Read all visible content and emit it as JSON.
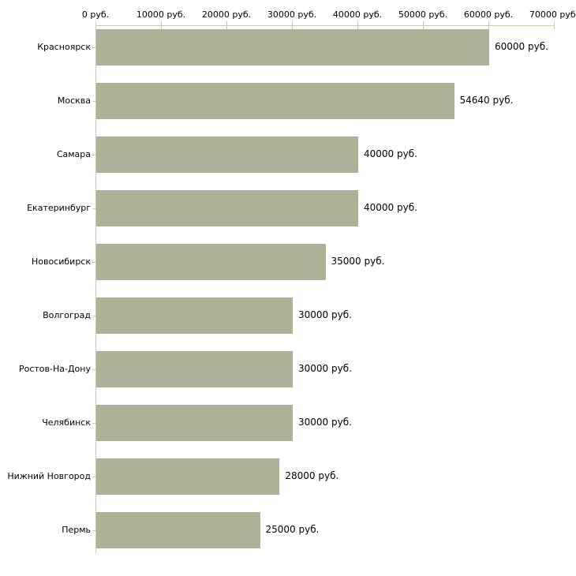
{
  "chart_data": {
    "type": "bar",
    "orientation": "horizontal",
    "title": "",
    "xlabel": "",
    "ylabel": "",
    "categories": [
      "Красноярск",
      "Москва",
      "Самара",
      "Екатеринбург",
      "Новосибирск",
      "Волгоград",
      "Ростов-На-Дону",
      "Челябинск",
      "Нижний Новгород",
      "Пермь"
    ],
    "values": [
      60000,
      54640,
      40000,
      40000,
      35000,
      30000,
      30000,
      30000,
      28000,
      25000
    ],
    "value_labels": [
      "60000 руб.",
      "54640 руб.",
      "40000 руб.",
      "40000 руб.",
      "35000 руб.",
      "30000 руб.",
      "30000 руб.",
      "30000 руб.",
      "28000 руб.",
      "25000 руб."
    ],
    "x_ticks": [
      0,
      10000,
      20000,
      30000,
      40000,
      50000,
      60000,
      70000
    ],
    "x_tick_labels": [
      "0 руб.",
      "10000 руб.",
      "20000 руб.",
      "30000 руб.",
      "40000 руб.",
      "50000 руб.",
      "60000 руб.",
      "70000 руб."
    ],
    "xlim": [
      0,
      70000
    ],
    "grid": false,
    "legend": null,
    "axis_position": "top",
    "colors": {
      "bar": "#acb198",
      "axis": "#ccccb2",
      "tick": "#cccc99",
      "text": "#000000",
      "background": "#ffffff"
    }
  }
}
